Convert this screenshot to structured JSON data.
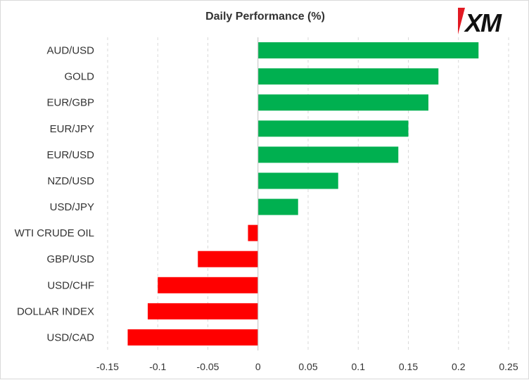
{
  "brand": {
    "logo_text": "XM",
    "accent_color": "#e21a23"
  },
  "chart_data": {
    "type": "bar",
    "orientation": "horizontal",
    "title": "Daily Performance (%)",
    "xlabel": "",
    "ylabel": "",
    "categories": [
      "AUD/USD",
      "GOLD",
      "EUR/GBP",
      "EUR/JPY",
      "EUR/USD",
      "NZD/USD",
      "USD/JPY",
      "WTI CRUDE OIL",
      "GBP/USD",
      "USD/CHF",
      "DOLLAR INDEX",
      "USD/CAD"
    ],
    "values": [
      0.22,
      0.18,
      0.17,
      0.15,
      0.14,
      0.08,
      0.04,
      -0.01,
      -0.06,
      -0.1,
      -0.11,
      -0.13
    ],
    "xlim": [
      -0.15,
      0.25
    ],
    "x_ticks": [
      "-0.15",
      "-0.1",
      "-0.05",
      "0",
      "0.05",
      "0.1",
      "0.15",
      "0.2",
      "0.25"
    ],
    "x_tick_values": [
      -0.15,
      -0.1,
      -0.05,
      0,
      0.05,
      0.1,
      0.15,
      0.2,
      0.25
    ],
    "grid": "vertical dashed",
    "legend": "none",
    "colors": {
      "positive": "#00b050",
      "negative": "#ff0000",
      "grid": "#d9d9d9",
      "axis": "#bfbfbf"
    }
  }
}
